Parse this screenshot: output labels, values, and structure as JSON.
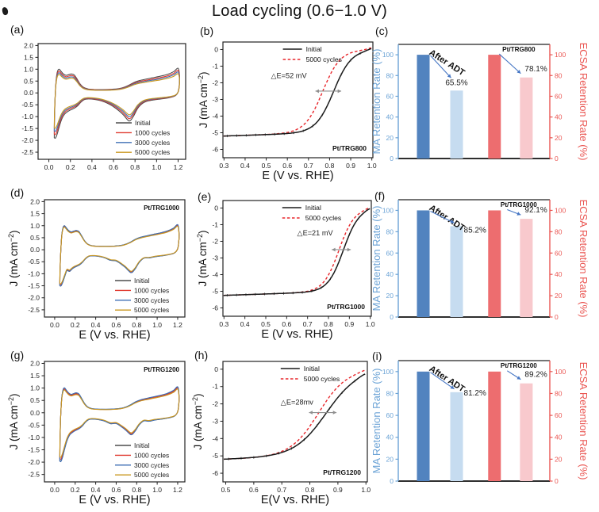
{
  "title": "Load cycling (0.6−1.0 V)",
  "colors": {
    "cv_series": [
      "#4d4d4d",
      "#e0392f",
      "#3f6fb5",
      "#c9971f"
    ],
    "lsv_initial": "#1a1a1a",
    "lsv_cycled": "#e8262b",
    "ma_blue": "#6ba3d6",
    "ecsa_red": "#ea5652",
    "bar_fills": [
      "#5283bf",
      "#c6dcf0",
      "#ed6d6f",
      "#f8c9cd"
    ],
    "annotation_arrow": "#4576c4",
    "axis_black": "#222222",
    "shift_arrow_gray": "#8f8f8f"
  },
  "chart_data": [
    {
      "id": "a",
      "letter": "(a)",
      "type": "cv",
      "tag": "",
      "xlabel": "",
      "ylabel_parts": null,
      "x_ticks": [
        "0.0",
        "0.2",
        "0.4",
        "0.6",
        "0.8",
        "1.0",
        "1.2"
      ],
      "y_ticks": [
        "2.0",
        "1.5",
        "1.0",
        "0.5",
        "0.0",
        "-0.5",
        "-1.0",
        "-1.5",
        "-2.0",
        "-2.5"
      ],
      "xlim": [
        -0.1,
        1.27
      ],
      "ylim": [
        -2.8,
        2.08
      ],
      "legend": [
        "Initial",
        "1000 cycles",
        "3000 cycles",
        "5000 cycles"
      ],
      "series_scales": [
        1.0,
        0.92,
        0.85,
        0.78
      ],
      "hspike": 1.9,
      "dip": 1.18
    },
    {
      "id": "b",
      "letter": "(b)",
      "type": "lsv",
      "tag": "Pt/TRG800",
      "xlabel": "E (V vs. RHE)",
      "ylabel_parts": [
        "J (mA cm",
        "−2",
        ")"
      ],
      "x_ticks": [
        "0.3",
        "0.4",
        "0.5",
        "0.6",
        "0.7",
        "0.8",
        "0.9",
        "1.0"
      ],
      "y_ticks": [
        "0",
        "-1",
        "-2",
        "-3",
        "-4",
        "-5",
        "-6"
      ],
      "xlim": [
        0.295,
        1.005
      ],
      "ylim": [
        -6.5,
        0.45
      ],
      "legend": [
        "Initial",
        "5000 cycles"
      ],
      "delta_label": "△E=52 mV",
      "delta_pos": [
        0.32,
        0.31
      ],
      "e_half": [
        0.82,
        0.768
      ],
      "widths": [
        0.042,
        0.042
      ],
      "j_lim": 4.9
    },
    {
      "id": "c",
      "letter": "(c)",
      "type": "bars",
      "tag": "Pt/TRG800",
      "left_label": "MA Retention Rate (%)",
      "right_label": "ECSA Retention Rate (%)",
      "ticks": [
        "0",
        "20",
        "40",
        "60",
        "80",
        "100"
      ],
      "values": [
        100,
        65.5,
        100,
        78.1
      ],
      "pct_labels": [
        "65.5%",
        "78.1%"
      ],
      "after_adt": "After ADT",
      "ylim": [
        0,
        110
      ]
    },
    {
      "id": "d",
      "letter": "(d)",
      "type": "cv",
      "tag": "Pt/TRG1000",
      "xlabel": "E (V vs. RHE)",
      "ylabel_parts": [
        "J (mA cm",
        "−2",
        ")"
      ],
      "x_ticks": [
        "0.0",
        "0.2",
        "0.4",
        "0.6",
        "0.8",
        "1.0",
        "1.2"
      ],
      "y_ticks": [
        "2.0",
        "1.5",
        "1.0",
        "0.5",
        "0.0",
        "-0.5",
        "-1.0",
        "-1.5",
        "-2.0",
        "-2.5"
      ],
      "xlim": [
        -0.1,
        1.27
      ],
      "ylim": [
        -2.8,
        2.08
      ],
      "legend": [
        "Initial",
        "1000 cycles",
        "3000 cycles",
        "5000 cycles"
      ],
      "series_scales": [
        1.0,
        0.97,
        1.0,
        0.94
      ],
      "hspike": 1.5,
      "dip": 0.95
    },
    {
      "id": "e",
      "letter": "(e)",
      "type": "lsv",
      "tag": "Pt/TRG1000",
      "xlabel": "E (V vs. RHE)",
      "ylabel_parts": [
        "J (mA cm",
        "−2",
        ")"
      ],
      "x_ticks": [
        "0.3",
        "0.4",
        "0.5",
        "0.6",
        "0.7",
        "0.8",
        "0.9",
        "1.0"
      ],
      "y_ticks": [
        "0",
        "-1",
        "-2",
        "-3",
        "-4",
        "-5",
        "-6"
      ],
      "xlim": [
        0.295,
        1.005
      ],
      "ylim": [
        -6.5,
        0.45
      ],
      "legend": [
        "Initial",
        "5000 cycles"
      ],
      "delta_label": "△E=21 mV",
      "delta_pos": [
        0.5,
        0.3
      ],
      "e_half": [
        0.872,
        0.851
      ],
      "widths": [
        0.037,
        0.037
      ],
      "j_lim": 4.95
    },
    {
      "id": "f",
      "letter": "(f)",
      "type": "bars",
      "tag": "Pt/TRG1000",
      "left_label": "MA Retention Rate (%)",
      "right_label": "ECSA Retention Rate (%)",
      "ticks": [
        "0",
        "20",
        "40",
        "60",
        "80",
        "100"
      ],
      "values": [
        100,
        85.2,
        100,
        92.1
      ],
      "pct_labels": [
        "85.2%",
        "92.1%"
      ],
      "after_adt": "After ADT",
      "ylim": [
        0,
        110
      ]
    },
    {
      "id": "g",
      "letter": "(g)",
      "type": "cv",
      "tag": "Pt/TRG1200",
      "xlabel": "E (V vs. RHE)",
      "ylabel_parts": [
        "J (mA cm",
        "−2",
        ")"
      ],
      "x_ticks": [
        "0.0",
        "0.2",
        "0.4",
        "0.6",
        "0.8",
        "1.0",
        "1.2"
      ],
      "y_ticks": [
        "2.0",
        "1.5",
        "1.0",
        "0.5",
        "0.0",
        "-0.5",
        "-1.0",
        "-1.5",
        "-2.0",
        "-2.5"
      ],
      "xlim": [
        -0.1,
        1.27
      ],
      "ylim": [
        -2.8,
        2.08
      ],
      "legend": [
        "Initial",
        "1000 cycles",
        "3000 cycles",
        "5000 cycles"
      ],
      "series_scales": [
        1.0,
        0.96,
        1.01,
        0.92
      ],
      "hspike": 1.95,
      "dip": 0.88
    },
    {
      "id": "h",
      "letter": "(h)",
      "type": "lsv",
      "tag": "Pt/TRG1200",
      "xlabel": "E(V vs. RHE)",
      "ylabel_parts": [
        "J (mA cm",
        "−2",
        ")"
      ],
      "x_ticks": [
        "0.5",
        "0.6",
        "0.7",
        "0.8",
        "0.9",
        "1.0"
      ],
      "y_ticks": [
        "0",
        "-1",
        "-2",
        "-3",
        "-4",
        "-5",
        "-6"
      ],
      "xlim": [
        0.49,
        1.005
      ],
      "ylim": [
        -6.5,
        0.45
      ],
      "legend": [
        "Initial",
        "5000 cycles"
      ],
      "delta_label": "△E=28mv",
      "delta_pos": [
        0.4,
        0.36
      ],
      "e_half": [
        0.86,
        0.832
      ],
      "widths": [
        0.056,
        0.05
      ],
      "j_lim": 4.9
    },
    {
      "id": "i",
      "letter": "(i)",
      "type": "bars",
      "tag": "Pt/TRG1200",
      "left_label": "MA Retention Rate (%)",
      "right_label": "ECSA Retention Rate (%)",
      "ticks": [
        "0",
        "20",
        "40",
        "60",
        "80",
        "100"
      ],
      "values": [
        100,
        81.2,
        100,
        89.2
      ],
      "pct_labels": [
        "81.2%",
        "89.2%"
      ],
      "after_adt": "After ADT",
      "ylim": [
        0,
        110
      ]
    }
  ]
}
